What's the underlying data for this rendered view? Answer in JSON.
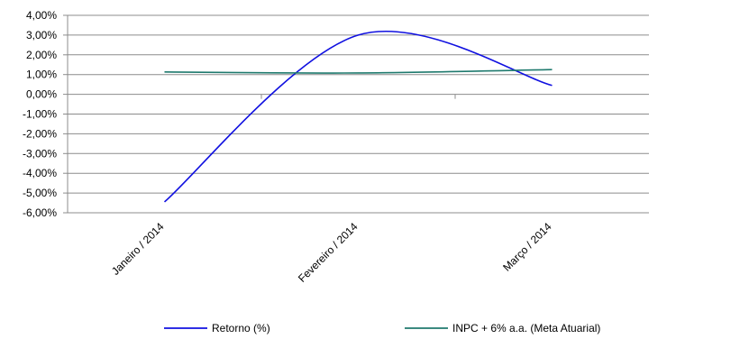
{
  "chart_data": {
    "type": "line",
    "title": "",
    "xlabel": "",
    "ylabel": "",
    "categories": [
      "Janeiro / 2014",
      "Fevereiro / 2014",
      "Março / 2014"
    ],
    "ylim": [
      -6.0,
      4.0
    ],
    "y_ticks": [
      "4,00%",
      "3,00%",
      "2,00%",
      "1,00%",
      "0,00%",
      "-1,00%",
      "-2,00%",
      "-3,00%",
      "-4,00%",
      "-5,00%",
      "-6,00%"
    ],
    "grid": true,
    "legend_position": "bottom",
    "smooth": true,
    "series": [
      {
        "name": "Retorno (%)",
        "color": "#1010e0",
        "values": [
          -5.45,
          3.0,
          0.45
        ]
      },
      {
        "name": "INPC + 6% a.a. (Meta Atuarial)",
        "color": "#1f7a6e",
        "values": [
          1.13,
          1.08,
          1.25
        ]
      }
    ]
  }
}
